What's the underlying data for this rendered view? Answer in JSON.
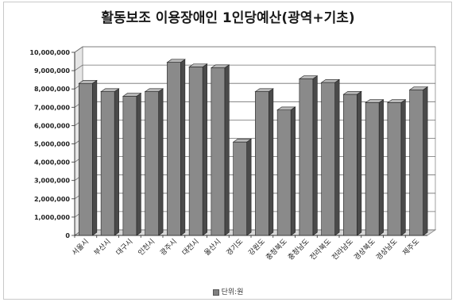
{
  "chart_data": {
    "type": "bar",
    "title": "활동보조 이용장애인 1인당예산(광역+기초)",
    "categories": [
      "서울시",
      "부산시",
      "대구시",
      "인천시",
      "광주시",
      "대전시",
      "울산시",
      "경기도",
      "강원도",
      "충청북도",
      "충청남도",
      "전라북도",
      "전라남도",
      "경상북도",
      "경상남도",
      "제주도"
    ],
    "series": [
      {
        "name": "단위:원",
        "values": [
          8300000,
          7850000,
          7600000,
          7850000,
          9450000,
          9200000,
          9150000,
          5100000,
          7850000,
          6850000,
          8550000,
          8350000,
          7700000,
          7250000,
          7250000,
          7950000
        ]
      }
    ],
    "yticks": [
      "0",
      "1,000,000",
      "2,000,000",
      "3,000,000",
      "4,000,000",
      "5,000,000",
      "6,000,000",
      "7,000,000",
      "8,000,000",
      "9,000,000",
      "10,000,000"
    ],
    "ylim": [
      0,
      10000000
    ],
    "grid": true,
    "legend_position": "bottom",
    "colors": {
      "bar_front": "#8a8a8a",
      "bar_side": "#4a4a4a",
      "bar_top": "#b8b8b8",
      "grid": "#6f6f6f"
    }
  }
}
